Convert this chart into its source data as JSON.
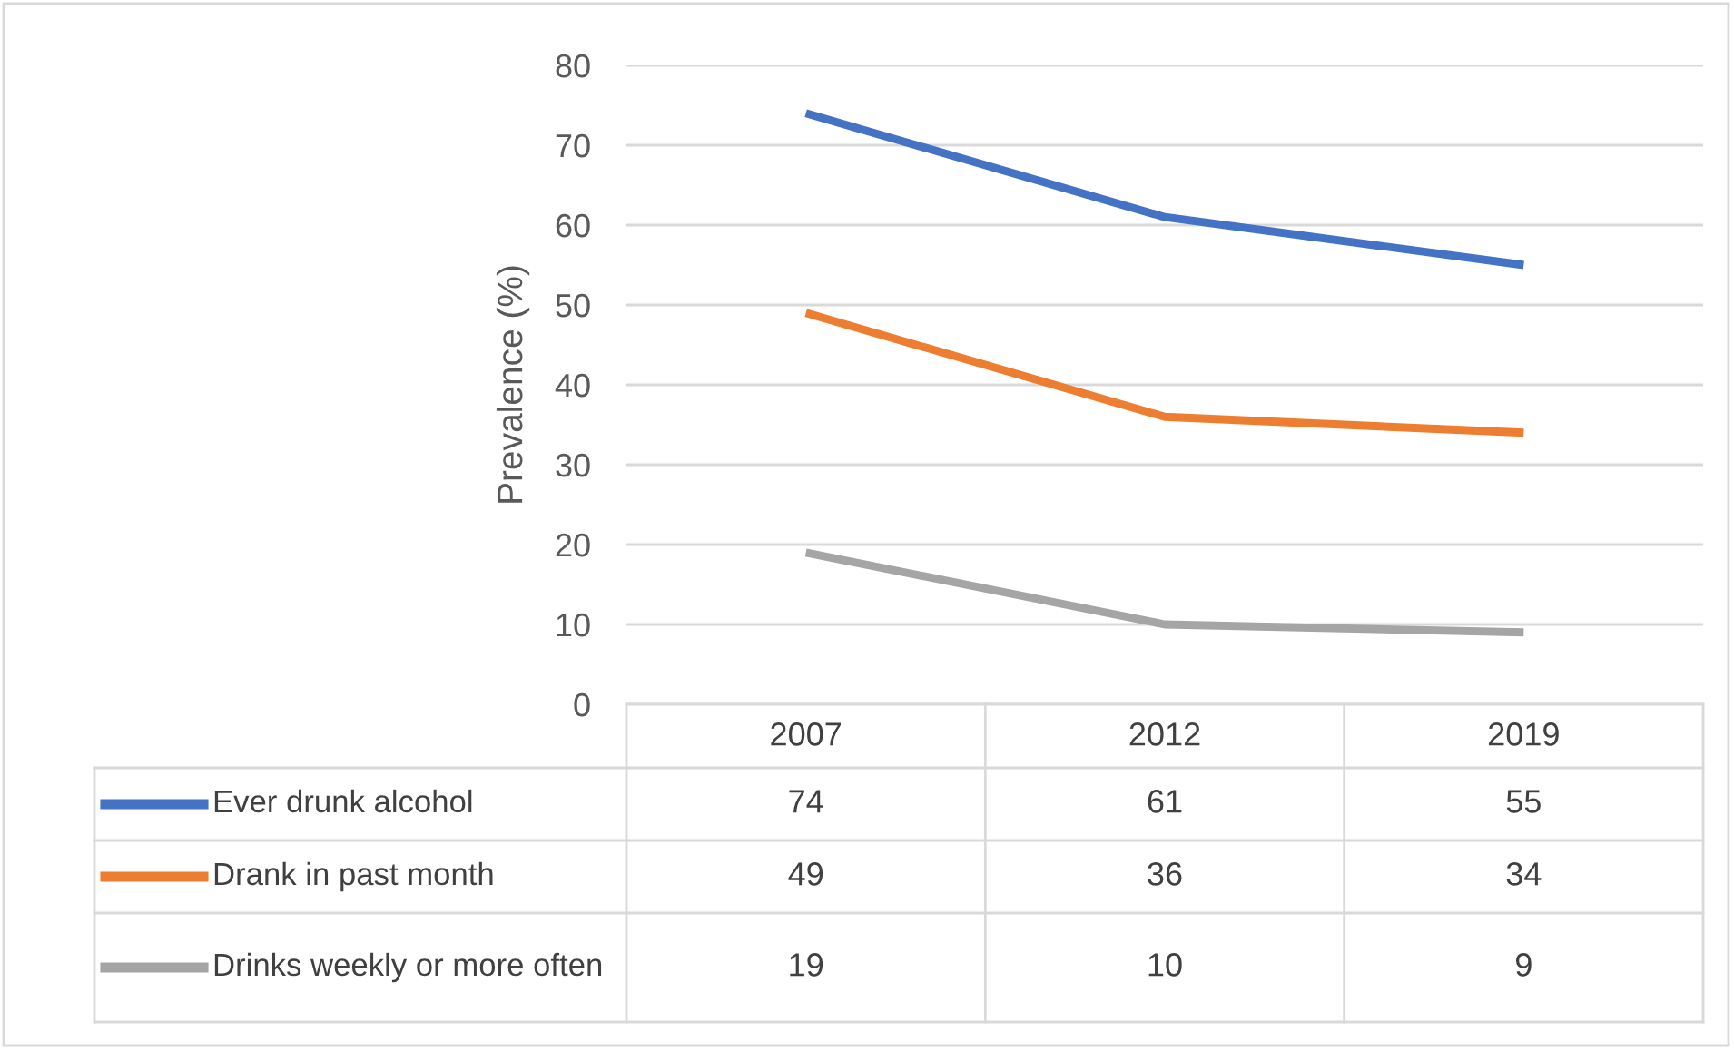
{
  "chart_data": {
    "type": "line",
    "ylabel": "Prevalence (%)",
    "categories": [
      "2007",
      "2012",
      "2019"
    ],
    "series": [
      {
        "name": "Ever drunk alcohol",
        "color": "#4472c4",
        "values": [
          74,
          61,
          55
        ]
      },
      {
        "name": "Drank in past month",
        "color": "#ed7d31",
        "values": [
          49,
          36,
          34
        ]
      },
      {
        "name": "Drinks weekly or more often",
        "color": "#a5a5a5",
        "values": [
          19,
          10,
          9
        ]
      }
    ],
    "ylim": [
      0,
      80
    ],
    "yticks": [
      0,
      10,
      20,
      30,
      40,
      50,
      60,
      70,
      80
    ],
    "grid": "y",
    "legend": "bottom",
    "data_labels": true,
    "marker": "none",
    "line_style": "solid"
  }
}
